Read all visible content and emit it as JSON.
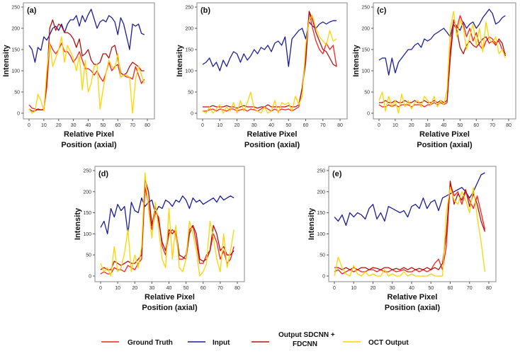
{
  "colors": {
    "ground_truth": "#ff1f1f",
    "input": "#1c1c9a",
    "output": "#b01212",
    "oct": "#ffd400"
  },
  "legend": [
    {
      "key": "ground_truth",
      "label": "Ground Truth"
    },
    {
      "key": "input",
      "label": "Input"
    },
    {
      "key": "output",
      "label": "Output SDCNN +",
      "label2": "FDCNN"
    },
    {
      "key": "oct",
      "label": "OCT Output"
    }
  ],
  "chart_data": [
    {
      "type": "line",
      "panel": "(a)",
      "xlabel": "Relative Pixel",
      "xlabel2": "Position (axial)",
      "ylabel": "Intensity",
      "xlim": [
        0,
        80
      ],
      "ylim": [
        0,
        250
      ],
      "x_step": 2,
      "xticks": [
        0,
        10,
        20,
        30,
        40,
        50,
        60,
        70,
        80
      ],
      "yticks": [
        0,
        50,
        100,
        150,
        200,
        250
      ],
      "series": [
        {
          "key": "input",
          "values": [
            160,
            150,
            120,
            155,
            148,
            180,
            172,
            185,
            200,
            205,
            195,
            210,
            190,
            210,
            220,
            220,
            230,
            205,
            230,
            215,
            232,
            245,
            222,
            200,
            215,
            220,
            215,
            230,
            225,
            215,
            185,
            225,
            210,
            180,
            150,
            210,
            205,
            210,
            188,
            185
          ]
        },
        {
          "key": "ground_truth",
          "values": [
            20,
            12,
            10,
            8,
            8,
            10,
            60,
            165,
            150,
            140,
            150,
            165,
            145,
            145,
            135,
            120,
            130,
            145,
            125,
            105,
            105,
            100,
            90,
            100,
            85,
            75,
            95,
            120,
            100,
            110,
            115,
            85,
            90,
            85,
            85,
            80,
            110,
            90,
            70,
            80
          ]
        },
        {
          "key": "output",
          "values": [
            10,
            5,
            5,
            10,
            8,
            8,
            80,
            200,
            220,
            195,
            210,
            205,
            190,
            190,
            185,
            175,
            155,
            175,
            135,
            140,
            150,
            125,
            115,
            115,
            120,
            140,
            140,
            130,
            155,
            160,
            130,
            95,
            90,
            95,
            110,
            120,
            115,
            110,
            100,
            100
          ]
        },
        {
          "key": "oct",
          "values": [
            10,
            0,
            5,
            45,
            30,
            5,
            100,
            165,
            110,
            130,
            150,
            180,
            120,
            160,
            145,
            130,
            100,
            135,
            55,
            125,
            50,
            70,
            110,
            115,
            10,
            55,
            95,
            125,
            110,
            105,
            140,
            85,
            90,
            90,
            85,
            0,
            80,
            110,
            90,
            70
          ]
        }
      ]
    },
    {
      "type": "line",
      "panel": "(b)",
      "xlabel": "Relative Pixel",
      "xlabel2": "Position (axial)",
      "ylabel": "Intensity",
      "xlim": [
        0,
        80
      ],
      "ylim": [
        0,
        250
      ],
      "x_step": 2,
      "xticks": [
        0,
        10,
        20,
        30,
        40,
        50,
        60,
        70,
        80
      ],
      "yticks": [
        0,
        50,
        100,
        150,
        200,
        250
      ],
      "series": [
        {
          "key": "input",
          "values": [
            115,
            120,
            130,
            110,
            120,
            100,
            125,
            110,
            130,
            145,
            140,
            120,
            140,
            125,
            135,
            150,
            140,
            155,
            150,
            160,
            145,
            165,
            170,
            160,
            180,
            110,
            175,
            185,
            195,
            200,
            175,
            215,
            205,
            200,
            210,
            215,
            210,
            215,
            218,
            218
          ]
        },
        {
          "key": "ground_truth",
          "values": [
            5,
            5,
            8,
            10,
            5,
            10,
            8,
            5,
            10,
            10,
            5,
            8,
            10,
            5,
            10,
            8,
            5,
            10,
            15,
            10,
            5,
            10,
            5,
            10,
            8,
            10,
            5,
            10,
            15,
            60,
            140,
            240,
            200,
            170,
            150,
            140,
            165,
            150,
            160,
            110
          ]
        },
        {
          "key": "output",
          "values": [
            15,
            15,
            15,
            18,
            15,
            15,
            15,
            18,
            15,
            15,
            12,
            15,
            18,
            15,
            15,
            15,
            12,
            15,
            15,
            20,
            15,
            15,
            15,
            15,
            15,
            18,
            15,
            15,
            20,
            60,
            120,
            240,
            220,
            190,
            170,
            150,
            145,
            130,
            115,
            110
          ]
        },
        {
          "key": "oct",
          "values": [
            5,
            0,
            15,
            0,
            10,
            20,
            0,
            15,
            5,
            25,
            0,
            30,
            5,
            25,
            50,
            10,
            5,
            0,
            15,
            0,
            5,
            30,
            0,
            25,
            20,
            25,
            5,
            40,
            20,
            40,
            160,
            220,
            230,
            200,
            180,
            170,
            160,
            195,
            170,
            175
          ]
        }
      ]
    },
    {
      "type": "line",
      "panel": "(c)",
      "xlabel": "Relative Pixel",
      "xlabel2": "Position (axial)",
      "ylabel": "Intensity",
      "xlim": [
        0,
        80
      ],
      "ylim": [
        0,
        250
      ],
      "x_step": 2,
      "xticks": [
        0,
        10,
        20,
        30,
        40,
        50,
        60,
        70,
        80
      ],
      "yticks": [
        0,
        50,
        100,
        150,
        200,
        250
      ],
      "series": [
        {
          "key": "input",
          "values": [
            125,
            130,
            130,
            90,
            130,
            95,
            120,
            130,
            140,
            150,
            150,
            160,
            165,
            155,
            175,
            170,
            175,
            185,
            190,
            195,
            200,
            190,
            180,
            215,
            205,
            195,
            215,
            200,
            210,
            215,
            200,
            210,
            225,
            235,
            245,
            235,
            210,
            215,
            225,
            230
          ]
        },
        {
          "key": "ground_truth",
          "values": [
            20,
            15,
            15,
            20,
            15,
            20,
            15,
            20,
            20,
            20,
            15,
            20,
            20,
            20,
            15,
            20,
            20,
            25,
            20,
            25,
            20,
            25,
            150,
            220,
            200,
            230,
            210,
            180,
            200,
            170,
            190,
            160,
            150,
            170,
            180,
            175,
            165,
            170,
            150,
            140
          ]
        },
        {
          "key": "output",
          "values": [
            25,
            25,
            30,
            25,
            25,
            30,
            25,
            25,
            30,
            25,
            25,
            30,
            25,
            25,
            30,
            25,
            25,
            30,
            25,
            30,
            25,
            30,
            130,
            210,
            195,
            155,
            140,
            160,
            170,
            160,
            155,
            165,
            175,
            180,
            165,
            170,
            160,
            175,
            165,
            135
          ]
        },
        {
          "key": "oct",
          "values": [
            30,
            50,
            5,
            40,
            15,
            30,
            0,
            45,
            15,
            30,
            10,
            25,
            30,
            15,
            40,
            30,
            20,
            40,
            15,
            30,
            20,
            55,
            200,
            240,
            180,
            220,
            200,
            150,
            180,
            210,
            160,
            200,
            145,
            215,
            175,
            165,
            180,
            140,
            150,
            130
          ]
        }
      ]
    },
    {
      "type": "line",
      "panel": "(d)",
      "xlabel": "Relative Pixel",
      "xlabel2": "Position (axial)",
      "ylabel": "Intensity",
      "xlim": [
        0,
        80
      ],
      "ylim": [
        0,
        250
      ],
      "x_step": 2,
      "xticks": [
        0,
        10,
        20,
        30,
        40,
        50,
        60,
        70,
        80
      ],
      "yticks": [
        0,
        50,
        100,
        150,
        200,
        250
      ],
      "series": [
        {
          "key": "input",
          "values": [
            115,
            130,
            100,
            160,
            140,
            170,
            155,
            165,
            100,
            175,
            155,
            150,
            185,
            165,
            175,
            180,
            150,
            165,
            160,
            180,
            175,
            165,
            180,
            175,
            190,
            180,
            160,
            185,
            175,
            180,
            170,
            175,
            180,
            185,
            175,
            190,
            180,
            185,
            190,
            185
          ]
        },
        {
          "key": "ground_truth",
          "values": [
            5,
            10,
            5,
            5,
            20,
            15,
            15,
            10,
            25,
            20,
            15,
            30,
            40,
            210,
            170,
            110,
            150,
            140,
            70,
            50,
            100,
            110,
            100,
            40,
            40,
            50,
            110,
            120,
            80,
            30,
            30,
            50,
            60,
            100,
            80,
            40,
            60,
            30,
            40,
            70
          ]
        },
        {
          "key": "output",
          "values": [
            15,
            20,
            15,
            15,
            35,
            30,
            25,
            30,
            35,
            30,
            30,
            40,
            50,
            230,
            200,
            120,
            165,
            130,
            80,
            60,
            110,
            100,
            110,
            50,
            45,
            40,
            100,
            120,
            100,
            40,
            35,
            40,
            60,
            120,
            100,
            60,
            70,
            50,
            50,
            60
          ]
        },
        {
          "key": "oct",
          "values": [
            30,
            10,
            20,
            0,
            70,
            10,
            20,
            55,
            110,
            10,
            50,
            20,
            70,
            245,
            160,
            90,
            175,
            110,
            40,
            20,
            160,
            40,
            120,
            20,
            10,
            40,
            130,
            100,
            60,
            0,
            10,
            30,
            130,
            90,
            40,
            10,
            100,
            20,
            60,
            110
          ]
        }
      ]
    },
    {
      "type": "line",
      "panel": "(e)",
      "xlabel": "Relative Pixel",
      "xlabel2": "Position (axial)",
      "ylabel": "Intensity",
      "xlim": [
        0,
        80
      ],
      "ylim": [
        0,
        250
      ],
      "x_step": 2,
      "xticks": [
        0,
        10,
        20,
        30,
        40,
        50,
        60,
        70,
        80
      ],
      "yticks": [
        0,
        50,
        100,
        150,
        200,
        250
      ],
      "series": [
        {
          "key": "input",
          "values": [
            140,
            130,
            145,
            120,
            150,
            140,
            150,
            145,
            135,
            160,
            170,
            135,
            150,
            130,
            165,
            160,
            155,
            150,
            155,
            140,
            165,
            170,
            160,
            185,
            160,
            175,
            180,
            155,
            185,
            190,
            195,
            200,
            205,
            210,
            200,
            185,
            200,
            220,
            240,
            245
          ]
        },
        {
          "key": "ground_truth",
          "values": [
            10,
            15,
            5,
            10,
            15,
            10,
            15,
            10,
            10,
            15,
            15,
            10,
            15,
            10,
            10,
            15,
            10,
            12,
            15,
            10,
            10,
            15,
            10,
            15,
            10,
            15,
            30,
            40,
            15,
            70,
            220,
            190,
            200,
            170,
            200,
            180,
            160,
            190,
            150,
            110
          ]
        },
        {
          "key": "output",
          "values": [
            20,
            20,
            15,
            20,
            15,
            20,
            15,
            20,
            20,
            15,
            20,
            18,
            15,
            20,
            20,
            15,
            18,
            15,
            20,
            15,
            20,
            15,
            18,
            15,
            20,
            15,
            20,
            15,
            30,
            100,
            225,
            170,
            195,
            180,
            205,
            165,
            195,
            170,
            130,
            105
          ]
        },
        {
          "key": "oct",
          "values": [
            0,
            45,
            20,
            5,
            0,
            25,
            5,
            0,
            10,
            0,
            5,
            0,
            0,
            15,
            0,
            5,
            0,
            0,
            10,
            0,
            5,
            0,
            0,
            0,
            0,
            5,
            0,
            0,
            0,
            150,
            210,
            180,
            170,
            200,
            180,
            150,
            210,
            140,
            80,
            10
          ]
        }
      ]
    }
  ]
}
